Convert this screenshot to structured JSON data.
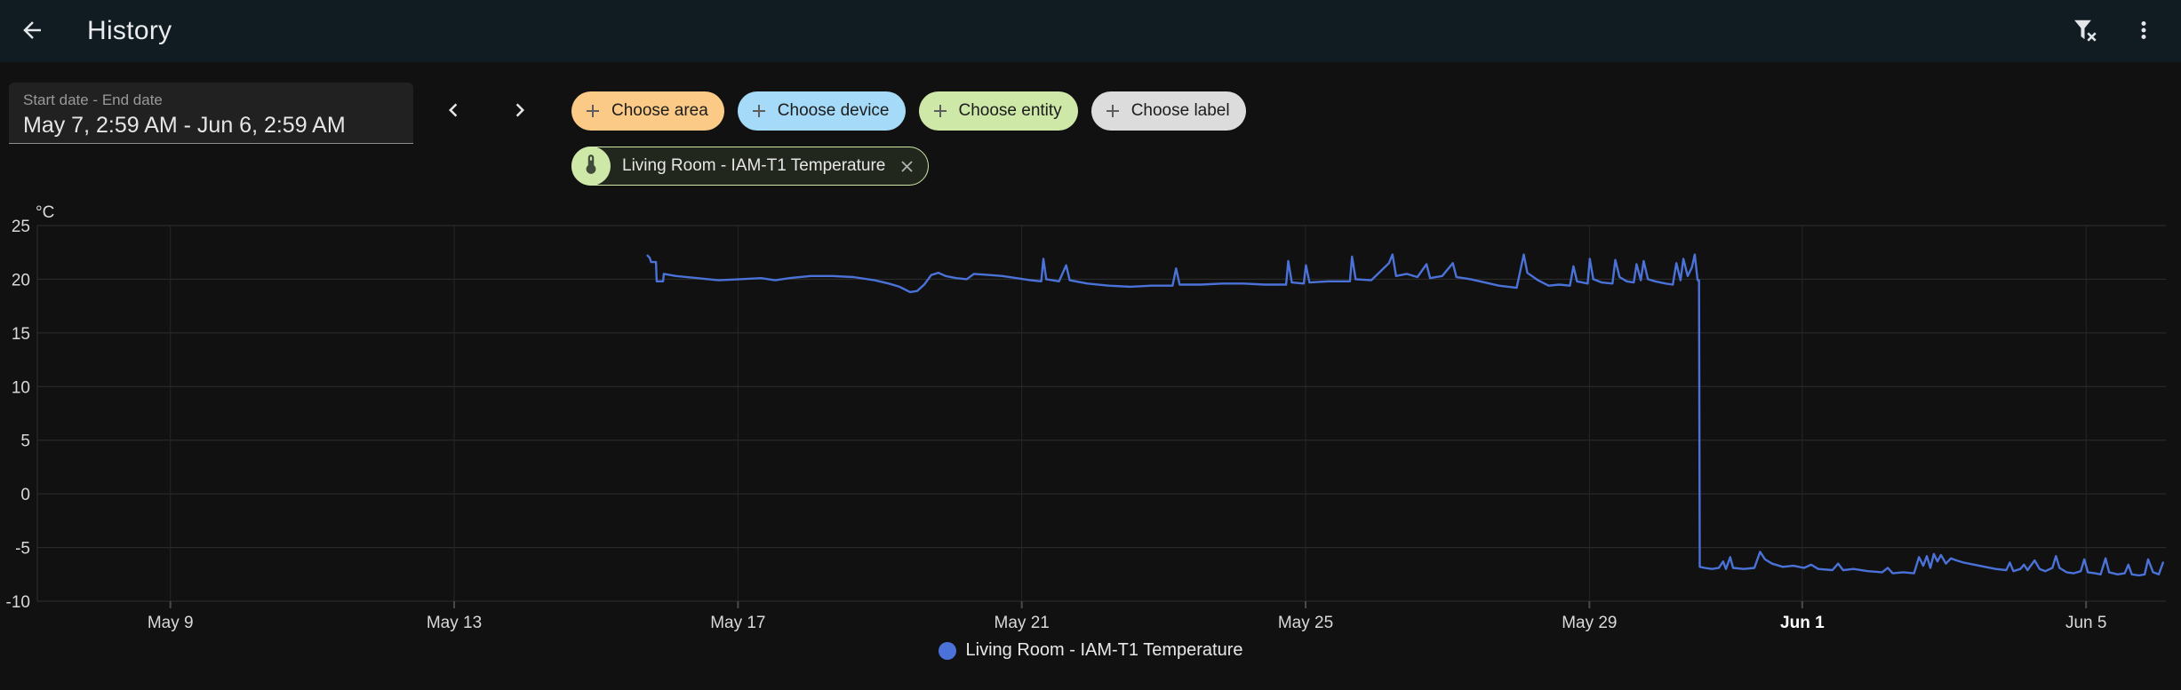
{
  "app": {
    "title": "History"
  },
  "header": {
    "back_icon": "arrow-left",
    "filter_icon": "filter-remove",
    "menu_icon": "dots-vertical-menu"
  },
  "toolbar": {
    "date_range": {
      "label": "Start date - End date",
      "value": "May 7, 2:59 AM - Jun 6, 2:59 AM"
    },
    "prev_icon": "chevron-left",
    "next_icon": "chevron-right",
    "filter_chips": [
      {
        "label": "Choose area",
        "color": "#fbca87"
      },
      {
        "label": "Choose device",
        "color": "#a5dbf8"
      },
      {
        "label": "Choose entity",
        "color": "#cee8a8"
      },
      {
        "label": "Choose label",
        "color": "#dcdcdc"
      }
    ],
    "selected_entity_chip": {
      "label": "Living Room - IAM-T1 Temperature",
      "icon": "thermometer",
      "accent_color": "#cee8a8",
      "close_icon": "close"
    }
  },
  "chart_data": {
    "type": "line",
    "title": "",
    "ylabel_unit": "°C",
    "ylim": [
      -10,
      25
    ],
    "yticks": [
      25,
      20,
      15,
      10,
      5,
      0,
      -5,
      -10
    ],
    "grid": true,
    "legend_position": "bottom",
    "x_axis": {
      "start": "May 7, 2:59 AM",
      "end": "Jun 6, 2:59 AM",
      "unit": "days_since_start",
      "range": [
        0,
        30
      ]
    },
    "xticks": [
      {
        "label": "May 9",
        "day": 1.875
      },
      {
        "label": "May 13",
        "day": 5.875
      },
      {
        "label": "May 17",
        "day": 9.875
      },
      {
        "label": "May 21",
        "day": 13.875
      },
      {
        "label": "May 25",
        "day": 17.875
      },
      {
        "label": "May 29",
        "day": 21.875
      },
      {
        "label": "Jun 1",
        "day": 24.875,
        "bold": true
      },
      {
        "label": "Jun 5",
        "day": 28.875
      }
    ],
    "series": [
      {
        "name": "Living Room - IAM-T1 Temperature",
        "color": "#4a72d8",
        "points": [
          [
            8.6,
            22.2
          ],
          [
            8.63,
            22.0
          ],
          [
            8.65,
            21.6
          ],
          [
            8.72,
            21.6
          ],
          [
            8.73,
            19.8
          ],
          [
            8.82,
            19.8
          ],
          [
            8.83,
            20.5
          ],
          [
            9.0,
            20.3
          ],
          [
            9.3,
            20.1
          ],
          [
            9.6,
            19.9
          ],
          [
            9.9,
            20.0
          ],
          [
            10.2,
            20.1
          ],
          [
            10.4,
            19.9
          ],
          [
            10.6,
            20.1
          ],
          [
            10.9,
            20.3
          ],
          [
            11.2,
            20.3
          ],
          [
            11.5,
            20.2
          ],
          [
            11.8,
            19.9
          ],
          [
            12.0,
            19.6
          ],
          [
            12.15,
            19.3
          ],
          [
            12.3,
            18.8
          ],
          [
            12.4,
            18.9
          ],
          [
            12.5,
            19.5
          ],
          [
            12.6,
            20.4
          ],
          [
            12.7,
            20.6
          ],
          [
            12.8,
            20.3
          ],
          [
            12.95,
            20.1
          ],
          [
            13.1,
            20.0
          ],
          [
            13.2,
            20.5
          ],
          [
            13.4,
            20.4
          ],
          [
            13.6,
            20.3
          ],
          [
            13.8,
            20.1
          ],
          [
            14.0,
            19.9
          ],
          [
            14.15,
            19.8
          ],
          [
            14.18,
            21.9
          ],
          [
            14.22,
            20.0
          ],
          [
            14.4,
            19.8
          ],
          [
            14.5,
            21.3
          ],
          [
            14.55,
            19.9
          ],
          [
            14.8,
            19.6
          ],
          [
            15.1,
            19.4
          ],
          [
            15.4,
            19.3
          ],
          [
            15.7,
            19.4
          ],
          [
            16.0,
            19.4
          ],
          [
            16.05,
            21.0
          ],
          [
            16.1,
            19.5
          ],
          [
            16.4,
            19.5
          ],
          [
            16.7,
            19.6
          ],
          [
            17.0,
            19.6
          ],
          [
            17.3,
            19.5
          ],
          [
            17.6,
            19.5
          ],
          [
            17.63,
            21.7
          ],
          [
            17.68,
            19.7
          ],
          [
            17.85,
            19.6
          ],
          [
            17.88,
            21.3
          ],
          [
            17.93,
            19.7
          ],
          [
            18.2,
            19.8
          ],
          [
            18.5,
            19.8
          ],
          [
            18.53,
            22.1
          ],
          [
            18.58,
            20.0
          ],
          [
            18.8,
            19.9
          ],
          [
            19.05,
            21.5
          ],
          [
            19.1,
            22.3
          ],
          [
            19.15,
            20.3
          ],
          [
            19.3,
            20.5
          ],
          [
            19.45,
            20.2
          ],
          [
            19.58,
            21.4
          ],
          [
            19.63,
            20.1
          ],
          [
            19.8,
            20.3
          ],
          [
            19.95,
            21.5
          ],
          [
            20.0,
            20.2
          ],
          [
            20.2,
            20.0
          ],
          [
            20.4,
            19.7
          ],
          [
            20.6,
            19.4
          ],
          [
            20.85,
            19.2
          ],
          [
            20.95,
            22.3
          ],
          [
            21.0,
            20.6
          ],
          [
            21.15,
            19.9
          ],
          [
            21.3,
            19.4
          ],
          [
            21.45,
            19.5
          ],
          [
            21.6,
            19.4
          ],
          [
            21.65,
            21.2
          ],
          [
            21.7,
            19.8
          ],
          [
            21.85,
            19.6
          ],
          [
            21.88,
            21.9
          ],
          [
            21.93,
            20.0
          ],
          [
            22.05,
            19.7
          ],
          [
            22.2,
            19.6
          ],
          [
            22.24,
            21.8
          ],
          [
            22.3,
            20.2
          ],
          [
            22.4,
            19.8
          ],
          [
            22.5,
            19.7
          ],
          [
            22.54,
            21.4
          ],
          [
            22.6,
            19.9
          ],
          [
            22.64,
            21.7
          ],
          [
            22.7,
            20.0
          ],
          [
            22.8,
            19.8
          ],
          [
            22.95,
            19.6
          ],
          [
            23.05,
            19.5
          ],
          [
            23.1,
            21.5
          ],
          [
            23.16,
            19.9
          ],
          [
            23.2,
            21.9
          ],
          [
            23.26,
            20.3
          ],
          [
            23.32,
            21.1
          ],
          [
            23.36,
            22.3
          ],
          [
            23.4,
            19.9
          ],
          [
            23.42,
            19.9
          ],
          [
            23.43,
            -6.8
          ],
          [
            23.5,
            -6.9
          ],
          [
            23.6,
            -7.0
          ],
          [
            23.7,
            -6.9
          ],
          [
            23.76,
            -6.3
          ],
          [
            23.8,
            -7.0
          ],
          [
            23.86,
            -5.9
          ],
          [
            23.9,
            -6.9
          ],
          [
            24.05,
            -7.0
          ],
          [
            24.2,
            -6.9
          ],
          [
            24.28,
            -5.4
          ],
          [
            24.35,
            -6.1
          ],
          [
            24.45,
            -6.5
          ],
          [
            24.6,
            -6.8
          ],
          [
            24.75,
            -6.7
          ],
          [
            24.9,
            -6.9
          ],
          [
            25.0,
            -6.6
          ],
          [
            25.1,
            -7.0
          ],
          [
            25.3,
            -7.1
          ],
          [
            25.38,
            -6.5
          ],
          [
            25.45,
            -7.1
          ],
          [
            25.6,
            -7.0
          ],
          [
            25.8,
            -7.2
          ],
          [
            26.0,
            -7.3
          ],
          [
            26.08,
            -6.9
          ],
          [
            26.15,
            -7.4
          ],
          [
            26.3,
            -7.3
          ],
          [
            26.45,
            -7.4
          ],
          [
            26.52,
            -5.9
          ],
          [
            26.58,
            -6.7
          ],
          [
            26.63,
            -5.8
          ],
          [
            26.68,
            -6.9
          ],
          [
            26.73,
            -5.6
          ],
          [
            26.78,
            -6.3
          ],
          [
            26.83,
            -5.7
          ],
          [
            26.9,
            -6.5
          ],
          [
            26.97,
            -6.0
          ],
          [
            27.05,
            -6.2
          ],
          [
            27.15,
            -6.4
          ],
          [
            27.3,
            -6.6
          ],
          [
            27.45,
            -6.8
          ],
          [
            27.6,
            -7.0
          ],
          [
            27.75,
            -7.1
          ],
          [
            27.8,
            -6.4
          ],
          [
            27.85,
            -7.2
          ],
          [
            27.95,
            -7.0
          ],
          [
            28.0,
            -6.6
          ],
          [
            28.05,
            -7.1
          ],
          [
            28.15,
            -6.2
          ],
          [
            28.22,
            -7.0
          ],
          [
            28.3,
            -7.2
          ],
          [
            28.4,
            -6.9
          ],
          [
            28.45,
            -5.8
          ],
          [
            28.5,
            -6.9
          ],
          [
            28.6,
            -7.3
          ],
          [
            28.7,
            -7.4
          ],
          [
            28.8,
            -7.2
          ],
          [
            28.85,
            -6.1
          ],
          [
            28.9,
            -7.3
          ],
          [
            29.0,
            -7.4
          ],
          [
            29.08,
            -7.5
          ],
          [
            29.15,
            -6.0
          ],
          [
            29.2,
            -7.3
          ],
          [
            29.32,
            -7.5
          ],
          [
            29.42,
            -7.4
          ],
          [
            29.47,
            -6.6
          ],
          [
            29.52,
            -7.5
          ],
          [
            29.62,
            -7.6
          ],
          [
            29.7,
            -7.5
          ],
          [
            29.75,
            -6.1
          ],
          [
            29.82,
            -7.3
          ],
          [
            29.9,
            -7.5
          ],
          [
            29.96,
            -6.4
          ]
        ]
      }
    ]
  },
  "legend": {
    "items": [
      {
        "label": "Living Room - IAM-T1 Temperature",
        "color": "#4a72d8"
      }
    ]
  }
}
